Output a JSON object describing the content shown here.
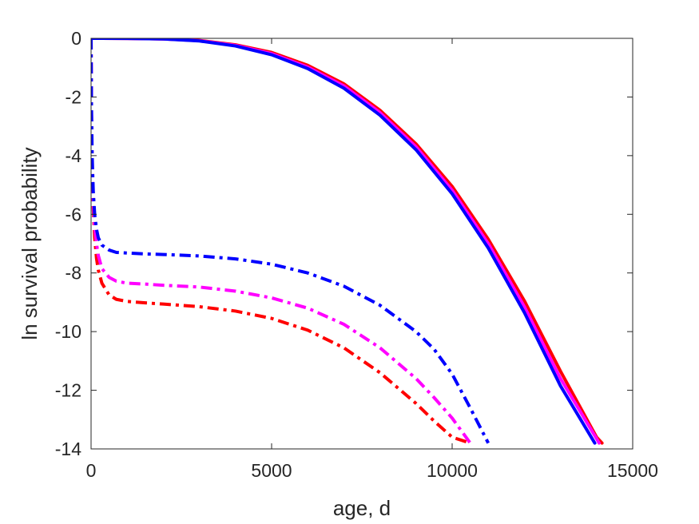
{
  "chart_data": {
    "type": "line",
    "title": "",
    "xlabel": "age, d",
    "ylabel": "ln survival probability",
    "xlim": [
      0,
      15000
    ],
    "ylim": [
      -14,
      0
    ],
    "xticks": [
      0,
      5000,
      10000,
      15000
    ],
    "yticks": [
      0,
      -2,
      -4,
      -6,
      -8,
      -10,
      -12,
      -14
    ],
    "xtick_labels": [
      "0",
      "5000",
      "10000",
      "15000"
    ],
    "ytick_labels": [
      "0",
      "-2",
      "-4",
      "-6",
      "-8",
      "-10",
      "-12",
      "-14"
    ],
    "grid": false,
    "legend": "none",
    "series": [
      {
        "color": "#ff0000",
        "style": "solid",
        "x": [
          0,
          1000,
          2000,
          3000,
          4000,
          5000,
          6000,
          7000,
          8000,
          9000,
          10000,
          11000,
          12000,
          13000,
          14000,
          14150
        ],
        "y": [
          0,
          -0.003,
          -0.02,
          -0.07,
          -0.22,
          -0.48,
          -0.92,
          -1.55,
          -2.45,
          -3.6,
          -5.05,
          -6.85,
          -8.95,
          -11.35,
          -13.6,
          -13.8
        ]
      },
      {
        "color": "#ff00ff",
        "style": "solid",
        "x": [
          0,
          1000,
          2000,
          3000,
          4000,
          5000,
          6000,
          7000,
          8000,
          9000,
          10000,
          11000,
          12000,
          13000,
          14000,
          14070
        ],
        "y": [
          0,
          -0.003,
          -0.02,
          -0.08,
          -0.24,
          -0.52,
          -0.98,
          -1.62,
          -2.53,
          -3.7,
          -5.18,
          -7.0,
          -9.15,
          -11.6,
          -13.65,
          -13.8
        ]
      },
      {
        "color": "#0000ff",
        "style": "solid",
        "x": [
          0,
          1000,
          2000,
          3000,
          4000,
          5000,
          6000,
          7000,
          8000,
          9000,
          10000,
          11000,
          12000,
          13000,
          13950
        ],
        "y": [
          0,
          -0.003,
          -0.02,
          -0.09,
          -0.26,
          -0.56,
          -1.03,
          -1.7,
          -2.62,
          -3.8,
          -5.3,
          -7.15,
          -9.35,
          -11.85,
          -13.8
        ]
      },
      {
        "color": "#ff0000",
        "style": "dashdot",
        "x": [
          0,
          10,
          30,
          60,
          100,
          150,
          200,
          300,
          500,
          700,
          1000,
          1500,
          2000,
          3000,
          4000,
          5000,
          6000,
          7000,
          8000,
          9000,
          9500,
          10000,
          10500
        ],
        "y": [
          0,
          -2.5,
          -4.5,
          -5.8,
          -6.8,
          -7.5,
          -7.9,
          -8.35,
          -8.75,
          -8.9,
          -8.97,
          -9.02,
          -9.06,
          -9.15,
          -9.3,
          -9.55,
          -9.95,
          -10.55,
          -11.4,
          -12.45,
          -13.05,
          -13.6,
          -13.8
        ]
      },
      {
        "color": "#ff00ff",
        "style": "dashdot",
        "x": [
          0,
          10,
          30,
          60,
          100,
          150,
          200,
          300,
          500,
          700,
          1000,
          1500,
          2000,
          3000,
          4000,
          5000,
          6000,
          7000,
          8000,
          9000,
          9500,
          10000,
          10500
        ],
        "y": [
          0,
          -2.4,
          -4.3,
          -5.5,
          -6.4,
          -7.0,
          -7.4,
          -7.85,
          -8.15,
          -8.28,
          -8.35,
          -8.38,
          -8.42,
          -8.48,
          -8.62,
          -8.85,
          -9.2,
          -9.75,
          -10.55,
          -11.6,
          -12.25,
          -12.95,
          -13.8
        ]
      },
      {
        "color": "#0000ff",
        "style": "dashdot",
        "x": [
          0,
          10,
          30,
          60,
          100,
          150,
          200,
          300,
          500,
          700,
          1000,
          1500,
          2000,
          3000,
          4000,
          5000,
          6000,
          7000,
          8000,
          9000,
          9500,
          10000,
          10500,
          11000
        ],
        "y": [
          0,
          -2.2,
          -4.0,
          -5.2,
          -6.0,
          -6.5,
          -6.8,
          -7.05,
          -7.22,
          -7.3,
          -7.32,
          -7.35,
          -7.37,
          -7.42,
          -7.52,
          -7.7,
          -8.0,
          -8.45,
          -9.1,
          -10.0,
          -10.6,
          -11.45,
          -12.6,
          -13.8
        ]
      }
    ]
  }
}
